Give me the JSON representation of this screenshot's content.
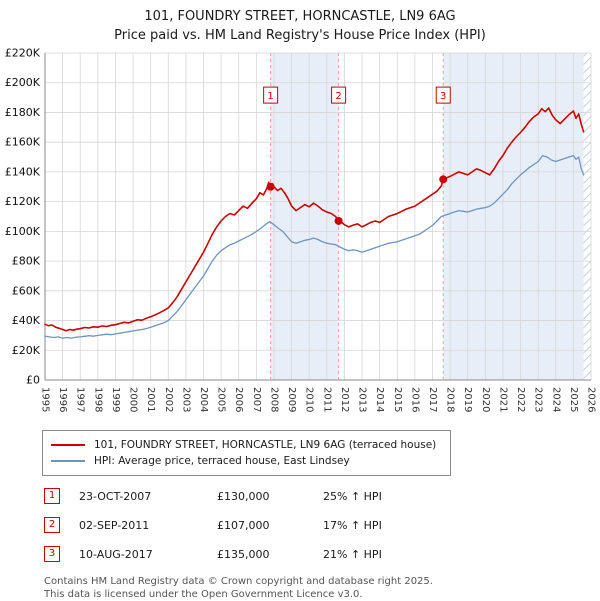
{
  "title": "101, FOUNDRY STREET, HORNCASTLE, LN9 6AG",
  "subtitle": "Price paid vs. HM Land Registry's House Price Index (HPI)",
  "chart_data": {
    "type": "line",
    "title": "101, FOUNDRY STREET, HORNCASTLE, LN9 6AG — Price paid vs. HPI",
    "y_unit": "GBP thousands",
    "x_axis": {
      "min": 1995,
      "max": 2026,
      "ticks": [
        1995,
        1996,
        1997,
        1998,
        1999,
        2000,
        2001,
        2002,
        2003,
        2004,
        2005,
        2006,
        2007,
        2008,
        2009,
        2010,
        2011,
        2012,
        2013,
        2014,
        2015,
        2016,
        2017,
        2018,
        2019,
        2020,
        2021,
        2022,
        2023,
        2024,
        2025,
        2026
      ]
    },
    "y_axis": {
      "max_k": 220,
      "ticks": [
        [
          0,
          "£0"
        ],
        [
          20,
          "£20K"
        ],
        [
          40,
          "£40K"
        ],
        [
          60,
          "£60K"
        ],
        [
          80,
          "£80K"
        ],
        [
          100,
          "£100K"
        ],
        [
          120,
          "£120K"
        ],
        [
          140,
          "£140K"
        ],
        [
          160,
          "£160K"
        ],
        [
          180,
          "£180K"
        ],
        [
          200,
          "£200K"
        ],
        [
          220,
          "£220K"
        ]
      ]
    },
    "colors": {
      "grid": "#d6d6d6",
      "shade": "#e8eef8",
      "dashed": "#ef9f9f",
      "axis": "#888888"
    },
    "marker_box_level_k": 191,
    "shaded_regions": [
      [
        2007.81,
        2011.67
      ],
      [
        2017.61,
        2025.58
      ]
    ],
    "hatched_region": [
      2025.58,
      2026
    ],
    "markers": [
      {
        "n": "1",
        "year": 2007.81,
        "value_k": 130
      },
      {
        "n": "2",
        "year": 2011.67,
        "value_k": 107
      },
      {
        "n": "3",
        "year": 2017.61,
        "value_k": 135
      }
    ],
    "series": [
      {
        "name": "101, FOUNDRY STREET, HORNCASTLE, LN9 6AG (terraced house)",
        "color": "#cc0000",
        "width": 1.6,
        "points": [
          [
            1995,
            37.5
          ],
          [
            1995.2,
            36.5
          ],
          [
            1995.4,
            37
          ],
          [
            1995.6,
            35.5
          ],
          [
            1995.8,
            34.8
          ],
          [
            1996,
            34
          ],
          [
            1996.2,
            33.2
          ],
          [
            1996.4,
            34
          ],
          [
            1996.6,
            33.5
          ],
          [
            1996.8,
            34.2
          ],
          [
            1997,
            34.5
          ],
          [
            1997.25,
            35.3
          ],
          [
            1997.5,
            35
          ],
          [
            1997.75,
            35.8
          ],
          [
            1998,
            35.5
          ],
          [
            1998.25,
            36.3
          ],
          [
            1998.5,
            36
          ],
          [
            1998.75,
            36.8
          ],
          [
            1999,
            37.2
          ],
          [
            1999.25,
            38
          ],
          [
            1999.5,
            38.8
          ],
          [
            1999.75,
            38.4
          ],
          [
            2000,
            39.5
          ],
          [
            2000.25,
            40.5
          ],
          [
            2000.5,
            40.2
          ],
          [
            2000.75,
            41.5
          ],
          [
            2001,
            42.5
          ],
          [
            2001.25,
            43.8
          ],
          [
            2001.5,
            45.2
          ],
          [
            2001.75,
            46.8
          ],
          [
            2002,
            48.5
          ],
          [
            2002.25,
            52
          ],
          [
            2002.5,
            56
          ],
          [
            2002.75,
            61
          ],
          [
            2003,
            66
          ],
          [
            2003.25,
            71
          ],
          [
            2003.5,
            76
          ],
          [
            2003.75,
            81
          ],
          [
            2004,
            86
          ],
          [
            2004.25,
            92
          ],
          [
            2004.5,
            98
          ],
          [
            2004.75,
            103
          ],
          [
            2005,
            107
          ],
          [
            2005.25,
            110
          ],
          [
            2005.5,
            112
          ],
          [
            2005.75,
            111
          ],
          [
            2006,
            114
          ],
          [
            2006.25,
            117
          ],
          [
            2006.5,
            115.5
          ],
          [
            2006.75,
            119
          ],
          [
            2007,
            122
          ],
          [
            2007.2,
            126
          ],
          [
            2007.4,
            124.5
          ],
          [
            2007.6,
            129
          ],
          [
            2007.7,
            133
          ],
          [
            2007.81,
            130
          ],
          [
            2007.92,
            132
          ],
          [
            2008,
            130
          ],
          [
            2008.2,
            127.5
          ],
          [
            2008.4,
            129
          ],
          [
            2008.6,
            126
          ],
          [
            2008.8,
            122
          ],
          [
            2009,
            117
          ],
          [
            2009.25,
            114
          ],
          [
            2009.5,
            116
          ],
          [
            2009.75,
            118
          ],
          [
            2010,
            116.5
          ],
          [
            2010.25,
            119
          ],
          [
            2010.5,
            117
          ],
          [
            2010.75,
            114.5
          ],
          [
            2011,
            113
          ],
          [
            2011.25,
            112
          ],
          [
            2011.5,
            110
          ],
          [
            2011.67,
            107
          ],
          [
            2011.85,
            106
          ],
          [
            2012,
            104.5
          ],
          [
            2012.25,
            103
          ],
          [
            2012.5,
            104.2
          ],
          [
            2012.75,
            105
          ],
          [
            2013,
            103
          ],
          [
            2013.25,
            104.5
          ],
          [
            2013.5,
            106
          ],
          [
            2013.75,
            107
          ],
          [
            2014,
            106
          ],
          [
            2014.25,
            108
          ],
          [
            2014.5,
            110
          ],
          [
            2014.75,
            111
          ],
          [
            2015,
            112
          ],
          [
            2015.25,
            113.5
          ],
          [
            2015.5,
            115
          ],
          [
            2015.75,
            116
          ],
          [
            2016,
            117
          ],
          [
            2016.25,
            119
          ],
          [
            2016.5,
            121
          ],
          [
            2016.75,
            123
          ],
          [
            2017,
            125
          ],
          [
            2017.25,
            127
          ],
          [
            2017.5,
            130.5
          ],
          [
            2017.61,
            135
          ],
          [
            2017.8,
            136
          ],
          [
            2018,
            137
          ],
          [
            2018.25,
            138.5
          ],
          [
            2018.5,
            140
          ],
          [
            2018.75,
            139
          ],
          [
            2019,
            138
          ],
          [
            2019.25,
            140
          ],
          [
            2019.5,
            142
          ],
          [
            2019.75,
            141
          ],
          [
            2020,
            139.5
          ],
          [
            2020.25,
            138
          ],
          [
            2020.5,
            142
          ],
          [
            2020.75,
            147
          ],
          [
            2021,
            151
          ],
          [
            2021.25,
            156
          ],
          [
            2021.5,
            160
          ],
          [
            2021.75,
            163.5
          ],
          [
            2022,
            166.5
          ],
          [
            2022.25,
            170
          ],
          [
            2022.5,
            174
          ],
          [
            2022.75,
            177
          ],
          [
            2023,
            179
          ],
          [
            2023.2,
            182.5
          ],
          [
            2023.4,
            180.5
          ],
          [
            2023.6,
            183
          ],
          [
            2023.8,
            178
          ],
          [
            2024,
            175
          ],
          [
            2024.25,
            172.5
          ],
          [
            2024.5,
            175.5
          ],
          [
            2024.75,
            178.5
          ],
          [
            2025,
            181
          ],
          [
            2025.15,
            176
          ],
          [
            2025.3,
            179
          ],
          [
            2025.45,
            172
          ],
          [
            2025.58,
            167
          ]
        ]
      },
      {
        "name": "HPI: Average price, terraced house, East Lindsey",
        "color": "#6f95bf",
        "width": 1.3,
        "points": [
          [
            1995,
            29.5
          ],
          [
            1995.25,
            29
          ],
          [
            1995.5,
            28.6
          ],
          [
            1995.75,
            29
          ],
          [
            1996,
            28.2
          ],
          [
            1996.25,
            28.6
          ],
          [
            1996.5,
            28.2
          ],
          [
            1996.75,
            28.8
          ],
          [
            1997,
            29
          ],
          [
            1997.25,
            29.4
          ],
          [
            1997.5,
            29.8
          ],
          [
            1997.75,
            29.5
          ],
          [
            1998,
            30
          ],
          [
            1998.25,
            30.4
          ],
          [
            1998.5,
            30.8
          ],
          [
            1998.75,
            30.5
          ],
          [
            1999,
            31
          ],
          [
            1999.25,
            31.5
          ],
          [
            1999.5,
            32
          ],
          [
            1999.75,
            32.5
          ],
          [
            2000,
            33
          ],
          [
            2000.25,
            33.5
          ],
          [
            2000.5,
            34
          ],
          [
            2000.75,
            34.6
          ],
          [
            2001,
            35.5
          ],
          [
            2001.25,
            36.5
          ],
          [
            2001.5,
            37.5
          ],
          [
            2001.75,
            38.5
          ],
          [
            2002,
            40
          ],
          [
            2002.25,
            43
          ],
          [
            2002.5,
            46
          ],
          [
            2002.75,
            50
          ],
          [
            2003,
            54
          ],
          [
            2003.25,
            58
          ],
          [
            2003.5,
            62
          ],
          [
            2003.75,
            66
          ],
          [
            2004,
            70
          ],
          [
            2004.25,
            75
          ],
          [
            2004.5,
            80
          ],
          [
            2004.75,
            84
          ],
          [
            2005,
            87
          ],
          [
            2005.25,
            89
          ],
          [
            2005.5,
            91
          ],
          [
            2005.75,
            92
          ],
          [
            2006,
            93.5
          ],
          [
            2006.25,
            95
          ],
          [
            2006.5,
            96.5
          ],
          [
            2006.75,
            98
          ],
          [
            2007,
            100
          ],
          [
            2007.25,
            102
          ],
          [
            2007.5,
            104.5
          ],
          [
            2007.75,
            106.5
          ],
          [
            2008,
            104.5
          ],
          [
            2008.25,
            102
          ],
          [
            2008.5,
            100
          ],
          [
            2008.75,
            96.5
          ],
          [
            2009,
            93
          ],
          [
            2009.25,
            92
          ],
          [
            2009.5,
            93
          ],
          [
            2009.75,
            94
          ],
          [
            2010,
            94.5
          ],
          [
            2010.25,
            95.5
          ],
          [
            2010.5,
            94.5
          ],
          [
            2010.75,
            93
          ],
          [
            2011,
            92
          ],
          [
            2011.25,
            91.5
          ],
          [
            2011.5,
            91
          ],
          [
            2011.75,
            89.5
          ],
          [
            2012,
            88
          ],
          [
            2012.25,
            87
          ],
          [
            2012.5,
            87.5
          ],
          [
            2012.75,
            87
          ],
          [
            2013,
            86
          ],
          [
            2013.25,
            87
          ],
          [
            2013.5,
            88
          ],
          [
            2013.75,
            89
          ],
          [
            2014,
            90
          ],
          [
            2014.25,
            91
          ],
          [
            2014.5,
            92
          ],
          [
            2014.75,
            92.5
          ],
          [
            2015,
            93
          ],
          [
            2015.25,
            94
          ],
          [
            2015.5,
            95
          ],
          [
            2015.75,
            96
          ],
          [
            2016,
            97
          ],
          [
            2016.25,
            98
          ],
          [
            2016.5,
            100
          ],
          [
            2016.75,
            102
          ],
          [
            2017,
            104
          ],
          [
            2017.25,
            107
          ],
          [
            2017.5,
            110
          ],
          [
            2017.75,
            111
          ],
          [
            2018,
            112
          ],
          [
            2018.25,
            113
          ],
          [
            2018.5,
            114
          ],
          [
            2018.75,
            113.5
          ],
          [
            2019,
            113
          ],
          [
            2019.25,
            114
          ],
          [
            2019.5,
            115
          ],
          [
            2019.75,
            115.5
          ],
          [
            2020,
            116
          ],
          [
            2020.25,
            117
          ],
          [
            2020.5,
            119
          ],
          [
            2020.75,
            122
          ],
          [
            2021,
            125
          ],
          [
            2021.25,
            128
          ],
          [
            2021.5,
            132
          ],
          [
            2021.75,
            135
          ],
          [
            2022,
            138
          ],
          [
            2022.25,
            140.5
          ],
          [
            2022.5,
            143
          ],
          [
            2022.75,
            145
          ],
          [
            2023,
            147
          ],
          [
            2023.25,
            151
          ],
          [
            2023.5,
            150
          ],
          [
            2023.75,
            148
          ],
          [
            2024,
            147
          ],
          [
            2024.25,
            148
          ],
          [
            2024.5,
            149
          ],
          [
            2024.75,
            150
          ],
          [
            2025,
            151
          ],
          [
            2025.15,
            148.5
          ],
          [
            2025.3,
            150
          ],
          [
            2025.45,
            142
          ],
          [
            2025.58,
            138
          ]
        ]
      }
    ]
  },
  "legend": {
    "items": [
      {
        "label": "101, FOUNDRY STREET, HORNCASTLE, LN9 6AG (terraced house)"
      },
      {
        "label": "HPI: Average price, terraced house, East Lindsey"
      }
    ]
  },
  "transactions": [
    {
      "n": "1",
      "date": "23-OCT-2007",
      "price": "£130,000",
      "hpi": "25% ↑ HPI"
    },
    {
      "n": "2",
      "date": "02-SEP-2011",
      "price": "£107,000",
      "hpi": "17% ↑ HPI"
    },
    {
      "n": "3",
      "date": "10-AUG-2017",
      "price": "£135,000",
      "hpi": "21% ↑ HPI"
    }
  ],
  "footer": {
    "line1": "Contains HM Land Registry data © Crown copyright and database right 2025.",
    "line2": "This data is licensed under the Open Government Licence v3.0."
  }
}
